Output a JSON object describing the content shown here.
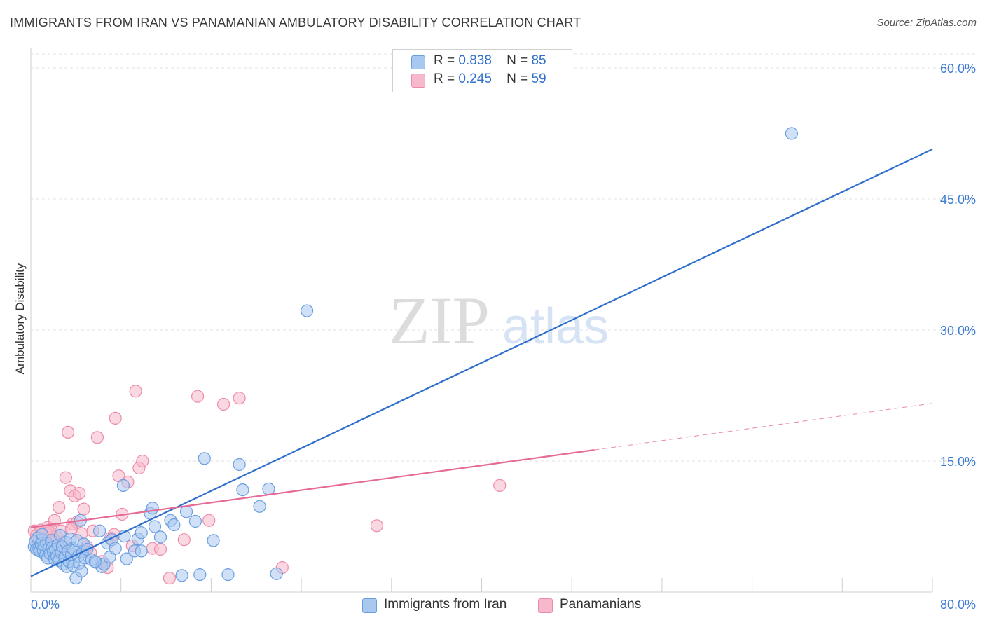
{
  "title": "IMMIGRANTS FROM IRAN VS PANAMANIAN AMBULATORY DISABILITY CORRELATION CHART",
  "source": "Source: ZipAtlas.com",
  "watermark": {
    "zip": "ZIP",
    "atlas": "atlas"
  },
  "legend": {
    "r_label": "R =",
    "n_label": "N =",
    "iran": {
      "r": "0.838",
      "n": "85"
    },
    "panama": {
      "r": "0.245",
      "n": "59"
    }
  },
  "colors": {
    "iran_fill": "#a9c8f0",
    "iran_stroke": "#6a9ee0",
    "iran_line": "#2f6fcc",
    "panama_fill": "#f6b8cb",
    "panama_stroke": "#ee8aa8",
    "panama_line": "#e56a95",
    "grid": "#e2e2e2",
    "axis_text": "#3d7bd4"
  },
  "chart_data": {
    "type": "scatter",
    "title": "IMMIGRANTS FROM IRAN VS PANAMANIAN AMBULATORY DISABILITY CORRELATION CHART",
    "xlabel": "",
    "ylabel": "Ambulatory Disability",
    "xlim": [
      0,
      80
    ],
    "ylim": [
      0,
      62
    ],
    "x_tick_labels": [
      "0.0%",
      "80.0%"
    ],
    "y_ticks": [
      15,
      30,
      45,
      60
    ],
    "y_tick_labels": [
      "15.0%",
      "30.0%",
      "45.0%",
      "60.0%"
    ],
    "legend_position": "bottom-center",
    "series": [
      {
        "name": "Immigrants from Iran",
        "r": 0.838,
        "n": 85,
        "trend": {
          "x": [
            0,
            80
          ],
          "y": [
            1.8,
            50.7
          ],
          "dashed_from": null
        },
        "points": [
          [
            0.3,
            5.2
          ],
          [
            0.4,
            5.8
          ],
          [
            0.5,
            4.9
          ],
          [
            0.6,
            6.2
          ],
          [
            0.7,
            5.0
          ],
          [
            0.8,
            4.7
          ],
          [
            0.9,
            5.5
          ],
          [
            1.0,
            6.0
          ],
          [
            1.1,
            4.8
          ],
          [
            1.2,
            5.3
          ],
          [
            1.3,
            4.2
          ],
          [
            1.4,
            5.6
          ],
          [
            1.5,
            3.9
          ],
          [
            1.6,
            5.0
          ],
          [
            1.7,
            4.4
          ],
          [
            1.8,
            5.9
          ],
          [
            1.9,
            5.1
          ],
          [
            2.0,
            4.6
          ],
          [
            2.1,
            3.8
          ],
          [
            2.2,
            4.9
          ],
          [
            2.3,
            4.1
          ],
          [
            2.4,
            5.4
          ],
          [
            2.5,
            3.6
          ],
          [
            2.6,
            6.5
          ],
          [
            2.7,
            4.5
          ],
          [
            2.8,
            5.2
          ],
          [
            2.9,
            3.2
          ],
          [
            3.0,
            4.0
          ],
          [
            3.1,
            5.7
          ],
          [
            3.2,
            2.9
          ],
          [
            3.3,
            4.7
          ],
          [
            3.4,
            3.5
          ],
          [
            3.5,
            6.1
          ],
          [
            3.6,
            4.3
          ],
          [
            3.7,
            5.0
          ],
          [
            3.8,
            3.0
          ],
          [
            3.9,
            4.8
          ],
          [
            4.0,
            1.6
          ],
          [
            4.1,
            5.9
          ],
          [
            4.2,
            4.1
          ],
          [
            4.3,
            3.3
          ],
          [
            4.4,
            8.2
          ],
          [
            4.5,
            2.4
          ],
          [
            4.6,
            4.6
          ],
          [
            4.7,
            5.5
          ],
          [
            4.8,
            3.9
          ],
          [
            5.0,
            4.9
          ],
          [
            5.4,
            3.7
          ],
          [
            5.8,
            3.4
          ],
          [
            6.1,
            7.0
          ],
          [
            6.3,
            2.9
          ],
          [
            6.5,
            3.2
          ],
          [
            6.8,
            5.6
          ],
          [
            7.0,
            4.0
          ],
          [
            7.2,
            6.0
          ],
          [
            7.5,
            5.0
          ],
          [
            8.3,
            6.4
          ],
          [
            8.5,
            3.8
          ],
          [
            9.2,
            4.7
          ],
          [
            9.5,
            6.1
          ],
          [
            9.8,
            6.8
          ],
          [
            10.6,
            9.0
          ],
          [
            10.8,
            9.6
          ],
          [
            11.0,
            7.5
          ],
          [
            11.5,
            6.3
          ],
          [
            12.4,
            8.2
          ],
          [
            12.7,
            7.7
          ],
          [
            13.8,
            9.2
          ],
          [
            14.6,
            8.1
          ],
          [
            15.4,
            15.3
          ],
          [
            16.2,
            5.9
          ],
          [
            17.5,
            2.0
          ],
          [
            18.5,
            14.6
          ],
          [
            18.8,
            11.7
          ],
          [
            20.3,
            9.8
          ],
          [
            21.1,
            11.8
          ],
          [
            21.8,
            2.1
          ],
          [
            24.5,
            32.2
          ],
          [
            13.4,
            1.9
          ],
          [
            15.0,
            2.0
          ],
          [
            8.2,
            12.2
          ],
          [
            67.5,
            52.5
          ],
          [
            9.8,
            4.7
          ],
          [
            1.0,
            6.6
          ],
          [
            5.7,
            3.5
          ]
        ]
      },
      {
        "name": "Panamanians",
        "r": 0.245,
        "n": 59,
        "trend": {
          "x": [
            0,
            80
          ],
          "y": [
            7.4,
            21.6
          ],
          "dashed_from": 50
        },
        "points": [
          [
            0.3,
            7.0
          ],
          [
            0.5,
            6.5
          ],
          [
            0.7,
            5.8
          ],
          [
            0.9,
            7.1
          ],
          [
            1.1,
            6.2
          ],
          [
            1.3,
            5.6
          ],
          [
            1.5,
            7.4
          ],
          [
            1.7,
            6.8
          ],
          [
            1.9,
            5.9
          ],
          [
            2.1,
            8.2
          ],
          [
            2.3,
            6.4
          ],
          [
            2.5,
            9.7
          ],
          [
            2.7,
            7.0
          ],
          [
            2.9,
            5.5
          ],
          [
            3.1,
            13.1
          ],
          [
            3.3,
            18.3
          ],
          [
            3.5,
            11.6
          ],
          [
            3.7,
            7.8
          ],
          [
            3.9,
            11.0
          ],
          [
            4.1,
            8.0
          ],
          [
            4.3,
            11.3
          ],
          [
            4.5,
            6.7
          ],
          [
            4.7,
            9.5
          ],
          [
            5.0,
            5.2
          ],
          [
            5.5,
            7.0
          ],
          [
            5.9,
            17.7
          ],
          [
            6.3,
            3.5
          ],
          [
            6.8,
            2.8
          ],
          [
            7.1,
            6.2
          ],
          [
            7.5,
            19.9
          ],
          [
            7.8,
            13.3
          ],
          [
            8.1,
            8.9
          ],
          [
            8.6,
            12.6
          ],
          [
            9.3,
            23.0
          ],
          [
            9.6,
            14.2
          ],
          [
            9.9,
            15.0
          ],
          [
            10.8,
            5.0
          ],
          [
            11.5,
            4.9
          ],
          [
            12.3,
            1.6
          ],
          [
            13.6,
            6.0
          ],
          [
            14.8,
            22.4
          ],
          [
            15.8,
            8.2
          ],
          [
            17.1,
            21.5
          ],
          [
            18.5,
            22.2
          ],
          [
            22.3,
            2.8
          ],
          [
            30.7,
            7.6
          ],
          [
            41.6,
            12.2
          ],
          [
            0.6,
            6.0
          ],
          [
            1.0,
            6.5
          ],
          [
            1.4,
            6.7
          ],
          [
            2.0,
            6.1
          ],
          [
            2.6,
            5.0
          ],
          [
            3.6,
            7.2
          ],
          [
            4.8,
            4.7
          ],
          [
            5.3,
            4.5
          ],
          [
            7.4,
            6.6
          ],
          [
            9.0,
            5.3
          ],
          [
            1.8,
            7.2
          ],
          [
            0.8,
            6.9
          ]
        ]
      }
    ]
  },
  "bottom_legend": {
    "iran": "Immigrants from Iran",
    "panama": "Panamanians"
  }
}
